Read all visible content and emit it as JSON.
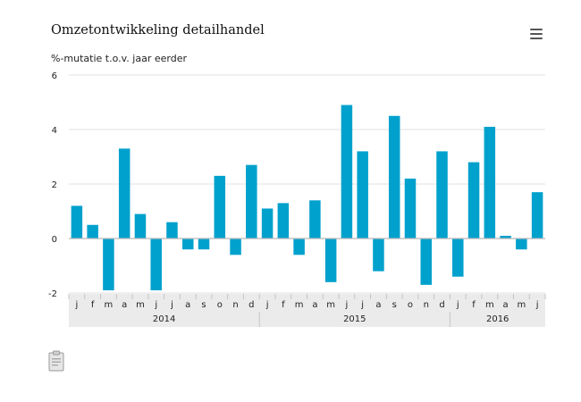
{
  "header": {
    "title": "Omzetontwikkeling detailhandel",
    "ylabel": "%-mutatie t.o.v. jaar eerder",
    "menu_icon": "hamburger-menu-icon"
  },
  "footer": {
    "export_icon": "clipboard-icon"
  },
  "chart_data": {
    "type": "bar",
    "title": "Omzetontwikkeling detailhandel",
    "ylabel": "%-mutatie t.o.v. jaar eerder",
    "xlabel": "",
    "ylim": [
      -2,
      6
    ],
    "yticks": [
      -2,
      0,
      2,
      4,
      6
    ],
    "grid": true,
    "color": "#00a1cd",
    "categories": [
      "j",
      "f",
      "m",
      "a",
      "m",
      "j",
      "j",
      "a",
      "s",
      "o",
      "n",
      "d",
      "j",
      "f",
      "m",
      "a",
      "m",
      "j",
      "j",
      "a",
      "s",
      "o",
      "n",
      "d",
      "j",
      "f",
      "m",
      "a",
      "m",
      "j"
    ],
    "values": [
      1.2,
      0.5,
      -1.9,
      3.3,
      0.9,
      -1.9,
      0.6,
      -0.4,
      -0.4,
      2.3,
      -0.6,
      2.7,
      1.1,
      1.3,
      -0.6,
      1.4,
      -1.6,
      4.9,
      3.2,
      -1.2,
      4.5,
      2.2,
      -1.7,
      3.2,
      -1.4,
      2.8,
      4.1,
      0.1,
      -0.4,
      1.7
    ],
    "year_groups": [
      {
        "label": "2014",
        "start": 0,
        "count": 12
      },
      {
        "label": "2015",
        "start": 12,
        "count": 12
      },
      {
        "label": "2016",
        "start": 24,
        "count": 6
      }
    ]
  }
}
